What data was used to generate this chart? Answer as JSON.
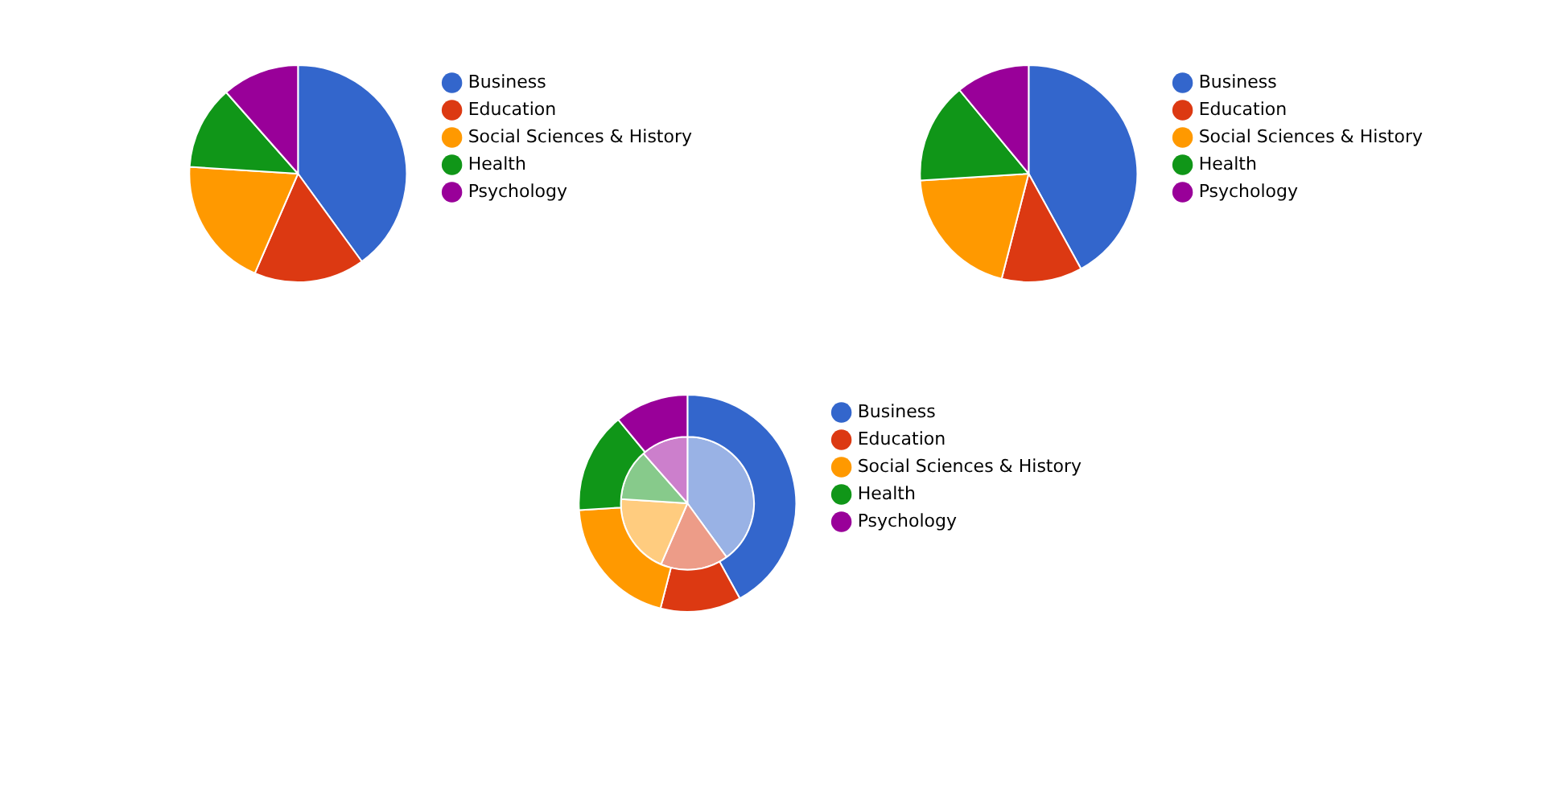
{
  "chart_data": [
    {
      "type": "pie",
      "categories": [
        "Business",
        "Education",
        "Social Sciences & History",
        "Health",
        "Psychology"
      ],
      "values": [
        40,
        16.5,
        19.5,
        12.5,
        11.5
      ],
      "colors": [
        "#3366cc",
        "#dc3912",
        "#ff9900",
        "#109618",
        "#990099"
      ],
      "legend": "right"
    },
    {
      "type": "pie",
      "categories": [
        "Business",
        "Education",
        "Social Sciences & History",
        "Health",
        "Psychology"
      ],
      "values": [
        42,
        12,
        20,
        15,
        11
      ],
      "colors": [
        "#3366cc",
        "#dc3912",
        "#ff9900",
        "#109618",
        "#990099"
      ],
      "legend": "right"
    },
    {
      "type": "pie",
      "categories": [
        "Business",
        "Education",
        "Social Sciences & History",
        "Health",
        "Psychology"
      ],
      "series": [
        {
          "values": [
            42,
            12,
            20,
            15,
            11
          ],
          "colors": [
            "#3366cc",
            "#dc3912",
            "#ff9900",
            "#109618",
            "#990099"
          ]
        },
        {
          "values": [
            40,
            16.5,
            19.5,
            12.5,
            11.5
          ],
          "colors": [
            "#99b2e5",
            "#ed9c88",
            "#ffcc7f",
            "#87ca8b",
            "#cc7fcc"
          ]
        }
      ],
      "legend": "right"
    }
  ]
}
